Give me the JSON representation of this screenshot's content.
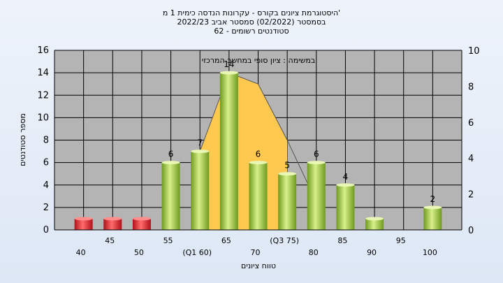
{
  "chart_data": {
    "type": "bar",
    "title_lines": [
      "היסטוגרמת ציונים בקורס - עקרונות הנדסה כימית 1 מ'",
      "בסמסטר  (02/2022)  סמסטר אביב 2022/23",
      "סטודנטים רשומים - 62"
    ],
    "annotation": "במשימה : ציון סופי במחשב המרכזי",
    "xlabel": "טווח ציונים",
    "ylabel": "מספר סטודנטים",
    "categories": [
      "40",
      "45",
      "50",
      "55",
      "(Q1 60)",
      "65",
      "70",
      "(Q3 75)",
      "80",
      "85",
      "90",
      "95",
      "100"
    ],
    "values": [
      1,
      1,
      1,
      6,
      7,
      14,
      6,
      5,
      6,
      4,
      1,
      0,
      2
    ],
    "data_labels": [
      "",
      "",
      "",
      "6",
      "7",
      "14",
      "6",
      "5",
      "6",
      "4",
      "",
      "",
      "2"
    ],
    "bar_colors": [
      "#d21f2b",
      "#d21f2b",
      "#d21f2b",
      "#8ab437",
      "#8ab437",
      "#8ab437",
      "#8ab437",
      "#8ab437",
      "#8ab437",
      "#8ab437",
      "#8ab437",
      "#8ab437",
      "#8ab437"
    ],
    "ylim": [
      0,
      16
    ],
    "yticks": [
      0,
      2,
      4,
      6,
      8,
      10,
      12,
      14,
      16
    ],
    "y2lim": [
      0,
      10
    ],
    "y2ticks": [
      0,
      2,
      4,
      6,
      8,
      10
    ],
    "iqr_band": {
      "color": "#ffc84e",
      "points": [
        [
          4,
          0
        ],
        [
          4,
          7
        ],
        [
          5,
          14
        ],
        [
          6,
          13
        ],
        [
          7,
          8
        ],
        [
          7,
          0
        ]
      ]
    },
    "distribution_curve": {
      "points": [
        [
          4,
          0
        ],
        [
          4,
          7
        ],
        [
          5,
          14
        ],
        [
          6,
          13
        ],
        [
          7,
          8
        ],
        [
          8,
          2.5
        ]
      ]
    },
    "grid": true,
    "plot_background": "#b4b4b4"
  }
}
